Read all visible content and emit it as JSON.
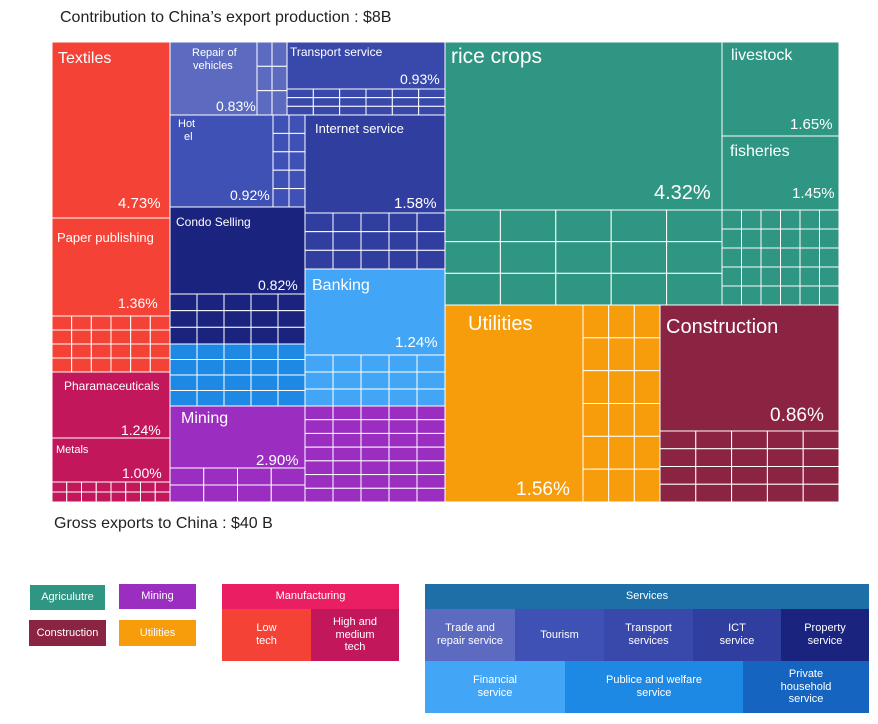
{
  "title_top": "Contribution to China’s export production : $8B",
  "title_bottom": "Gross exports to China : $40 B",
  "colors": {
    "agriculture": "#2e9682",
    "mining": "#9b2ec0",
    "manufacturing_low": "#f44336",
    "manufacturing_high": "#c2185b",
    "construction": "#8b2342",
    "utilities": "#f79c0a",
    "trade_repair": "#5c6bc0",
    "tourism": "#3f51b5",
    "transport": "#3949ab",
    "ict": "#303f9f",
    "property": "#1a237e",
    "financial": "#42a5f5",
    "public_welfare": "#1e88e5",
    "private_household": "#1565c0",
    "services_header": "#1e6fa8"
  },
  "chart_data": {
    "type": "treemap",
    "title": "Contribution to China’s export production : $8B",
    "cells": [
      {
        "label": "Textiles",
        "value": "4.73%",
        "group": "Low tech manufacturing"
      },
      {
        "label": "Paper publishing",
        "value": "1.36%",
        "group": "Low tech manufacturing"
      },
      {
        "label": "Pharamaceuticals",
        "value": "1.24%",
        "group": "High and medium tech manufacturing"
      },
      {
        "label": "Metals",
        "value": "1.00%",
        "group": "High and medium tech manufacturing"
      },
      {
        "label": "Repair of vehicles",
        "value": "0.83%",
        "group": "Trade and repair service"
      },
      {
        "label": "Transport service",
        "value": "0.93%",
        "group": "Transport services"
      },
      {
        "label": "Hotel",
        "value": "0.92%",
        "group": "Tourism"
      },
      {
        "label": "Internet service",
        "value": "1.58%",
        "group": "ICT service"
      },
      {
        "label": "Condo Selling",
        "value": "0.82%",
        "group": "Property service"
      },
      {
        "label": "Banking",
        "value": "1.24%",
        "group": "Financial service"
      },
      {
        "label": "Mining",
        "value": "2.90%",
        "group": "Mining"
      },
      {
        "label": "rice crops",
        "value": "4.32%",
        "group": "Agriculture"
      },
      {
        "label": "livestock",
        "value": "1.65%",
        "group": "Agriculture"
      },
      {
        "label": "fisheries",
        "value": "1.45%",
        "group": "Agriculture"
      },
      {
        "label": "Utilities",
        "value": "1.56%",
        "group": "Utilities"
      },
      {
        "label": "Construction",
        "value": "0.86%",
        "group": "Construction"
      }
    ],
    "subtitle": "Gross exports to China : $40 B"
  },
  "labels": {
    "textiles": "Textiles",
    "textiles_v": "4.73%",
    "paper": "Paper publishing",
    "paper_v": "1.36%",
    "pharma": "Pharamaceuticals",
    "pharma_v": "1.24%",
    "metals": "Metals",
    "metals_v": "1.00%",
    "repair_1": "Repair of",
    "repair_2": "vehicles",
    "repair_v": "0.83%",
    "transport": "Transport service",
    "transport_v": "0.93%",
    "hotel_1": "Hot",
    "hotel_2": "el",
    "hotel_v": "0.92%",
    "internet": "Internet service",
    "internet_v": "1.58%",
    "condo": "Condo Selling",
    "condo_v": "0.82%",
    "banking": "Banking",
    "banking_v": "1.24%",
    "mining": "Mining",
    "mining_v": "2.90%",
    "rice": "rice crops",
    "rice_v": "4.32%",
    "livestock": "livestock",
    "livestock_v": "1.65%",
    "fisheries": "fisheries",
    "fisheries_v": "1.45%",
    "utilities": "Utilities",
    "utilities_v": "1.56%",
    "construction": "Construction",
    "construction_v": "0.86%"
  },
  "legend": {
    "agriculture": "Agriculutre",
    "mining": "Mining",
    "construction": "Construction",
    "utilities": "Utilities",
    "manufacturing": "Manufacturing",
    "low_tech_1": "Low",
    "low_tech_2": "tech",
    "high_tech_1": "High and",
    "high_tech_2": "medium",
    "high_tech_3": "tech",
    "services": "Services",
    "trade_1": "Trade and",
    "trade_2": "repair service",
    "tourism": "Tourism",
    "transport_1": "Transport",
    "transport_2": "services",
    "ict_1": "ICT",
    "ict_2": "service",
    "property_1": "Property",
    "property_2": "service",
    "financial_1": "Financial",
    "financial_2": "service",
    "public_1": "Publice and welfare",
    "public_2": "service",
    "private_1": "Private",
    "private_2": "household",
    "private_3": "service"
  }
}
